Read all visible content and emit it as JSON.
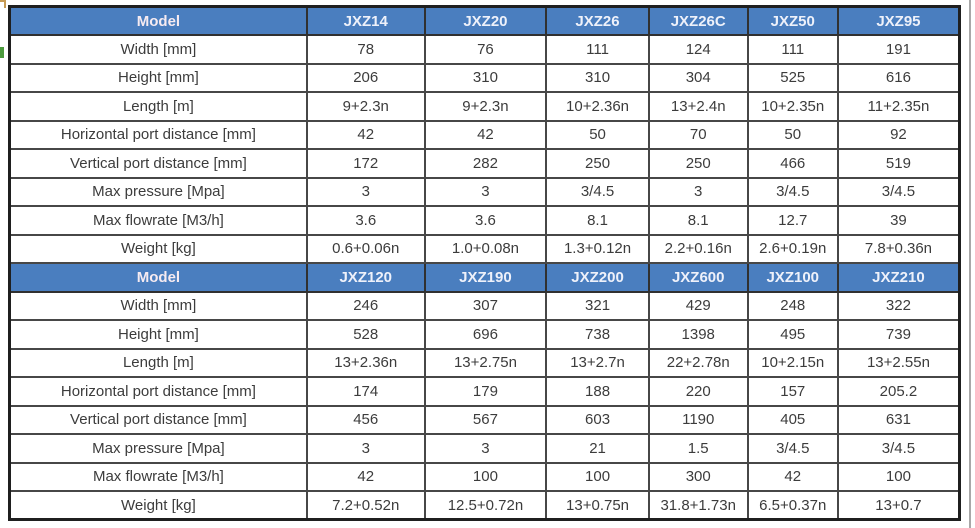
{
  "colors": {
    "header_bg": "#4a7ebf",
    "header_label_color": "#f6ebf1",
    "model_name_color": "#eef1fa",
    "body_text": "#3c3c3c",
    "grid_border": "#474747",
    "outer_border": "#1f1f1f",
    "green_mark": "#4c9a3d",
    "corner_mark": "#c79b55",
    "page_edge": "#a8a8a8"
  },
  "table": {
    "header_label": "Model",
    "row_labels": [
      "Width [mm]",
      "Height [mm]",
      "Length [m]",
      "Horizontal port distance [mm]",
      "Vertical port distance  [mm]",
      "Max pressure [Mpa]",
      "Max flowrate  [M3/h]",
      "Weight [kg]"
    ],
    "sections": [
      {
        "models": [
          "JXZ14",
          "JXZ20",
          "JXZ26",
          "JXZ26C",
          "JXZ50",
          "JXZ95"
        ],
        "rows": [
          [
            "78",
            "76",
            "111",
            "124",
            "111",
            "191"
          ],
          [
            "206",
            "310",
            "310",
            "304",
            "525",
            "616"
          ],
          [
            "9+2.3n",
            "9+2.3n",
            "10+2.36n",
            "13+2.4n",
            "10+2.35n",
            "11+2.35n"
          ],
          [
            "42",
            "42",
            "50",
            "70",
            "50",
            "92"
          ],
          [
            "172",
            "282",
            "250",
            "250",
            "466",
            "519"
          ],
          [
            "3",
            "3",
            "3/4.5",
            "3",
            "3/4.5",
            "3/4.5"
          ],
          [
            "3.6",
            "3.6",
            "8.1",
            "8.1",
            "12.7",
            "39"
          ],
          [
            "0.6+0.06n",
            "1.0+0.08n",
            "1.3+0.12n",
            "2.2+0.16n",
            "2.6+0.19n",
            "7.8+0.36n"
          ]
        ]
      },
      {
        "models": [
          "JXZ120",
          "JXZ190",
          "JXZ200",
          "JXZ600",
          "JXZ100",
          "JXZ210"
        ],
        "rows": [
          [
            "246",
            "307",
            "321",
            "429",
            "248",
            "322"
          ],
          [
            "528",
            "696",
            "738",
            "1398",
            "495",
            "739"
          ],
          [
            "13+2.36n",
            "13+2.75n",
            "13+2.7n",
            "22+2.78n",
            "10+2.15n",
            "13+2.55n"
          ],
          [
            "174",
            "179",
            "188",
            "220",
            "157",
            "205.2"
          ],
          [
            "456",
            "567",
            "603",
            "1190",
            "405",
            "631"
          ],
          [
            "3",
            "3",
            "21",
            "1.5",
            "3/4.5",
            "3/4.5"
          ],
          [
            "42",
            "100",
            "100",
            "300",
            "42",
            "100"
          ],
          [
            "7.2+0.52n",
            "12.5+0.72n",
            "13+0.75n",
            "31.8+1.73n",
            "6.5+0.37n",
            "13+0.7"
          ]
        ]
      }
    ],
    "column_widths_percent": [
      31.3,
      12.4,
      12.8,
      10.8,
      10.4,
      9.5,
      12.8
    ]
  }
}
